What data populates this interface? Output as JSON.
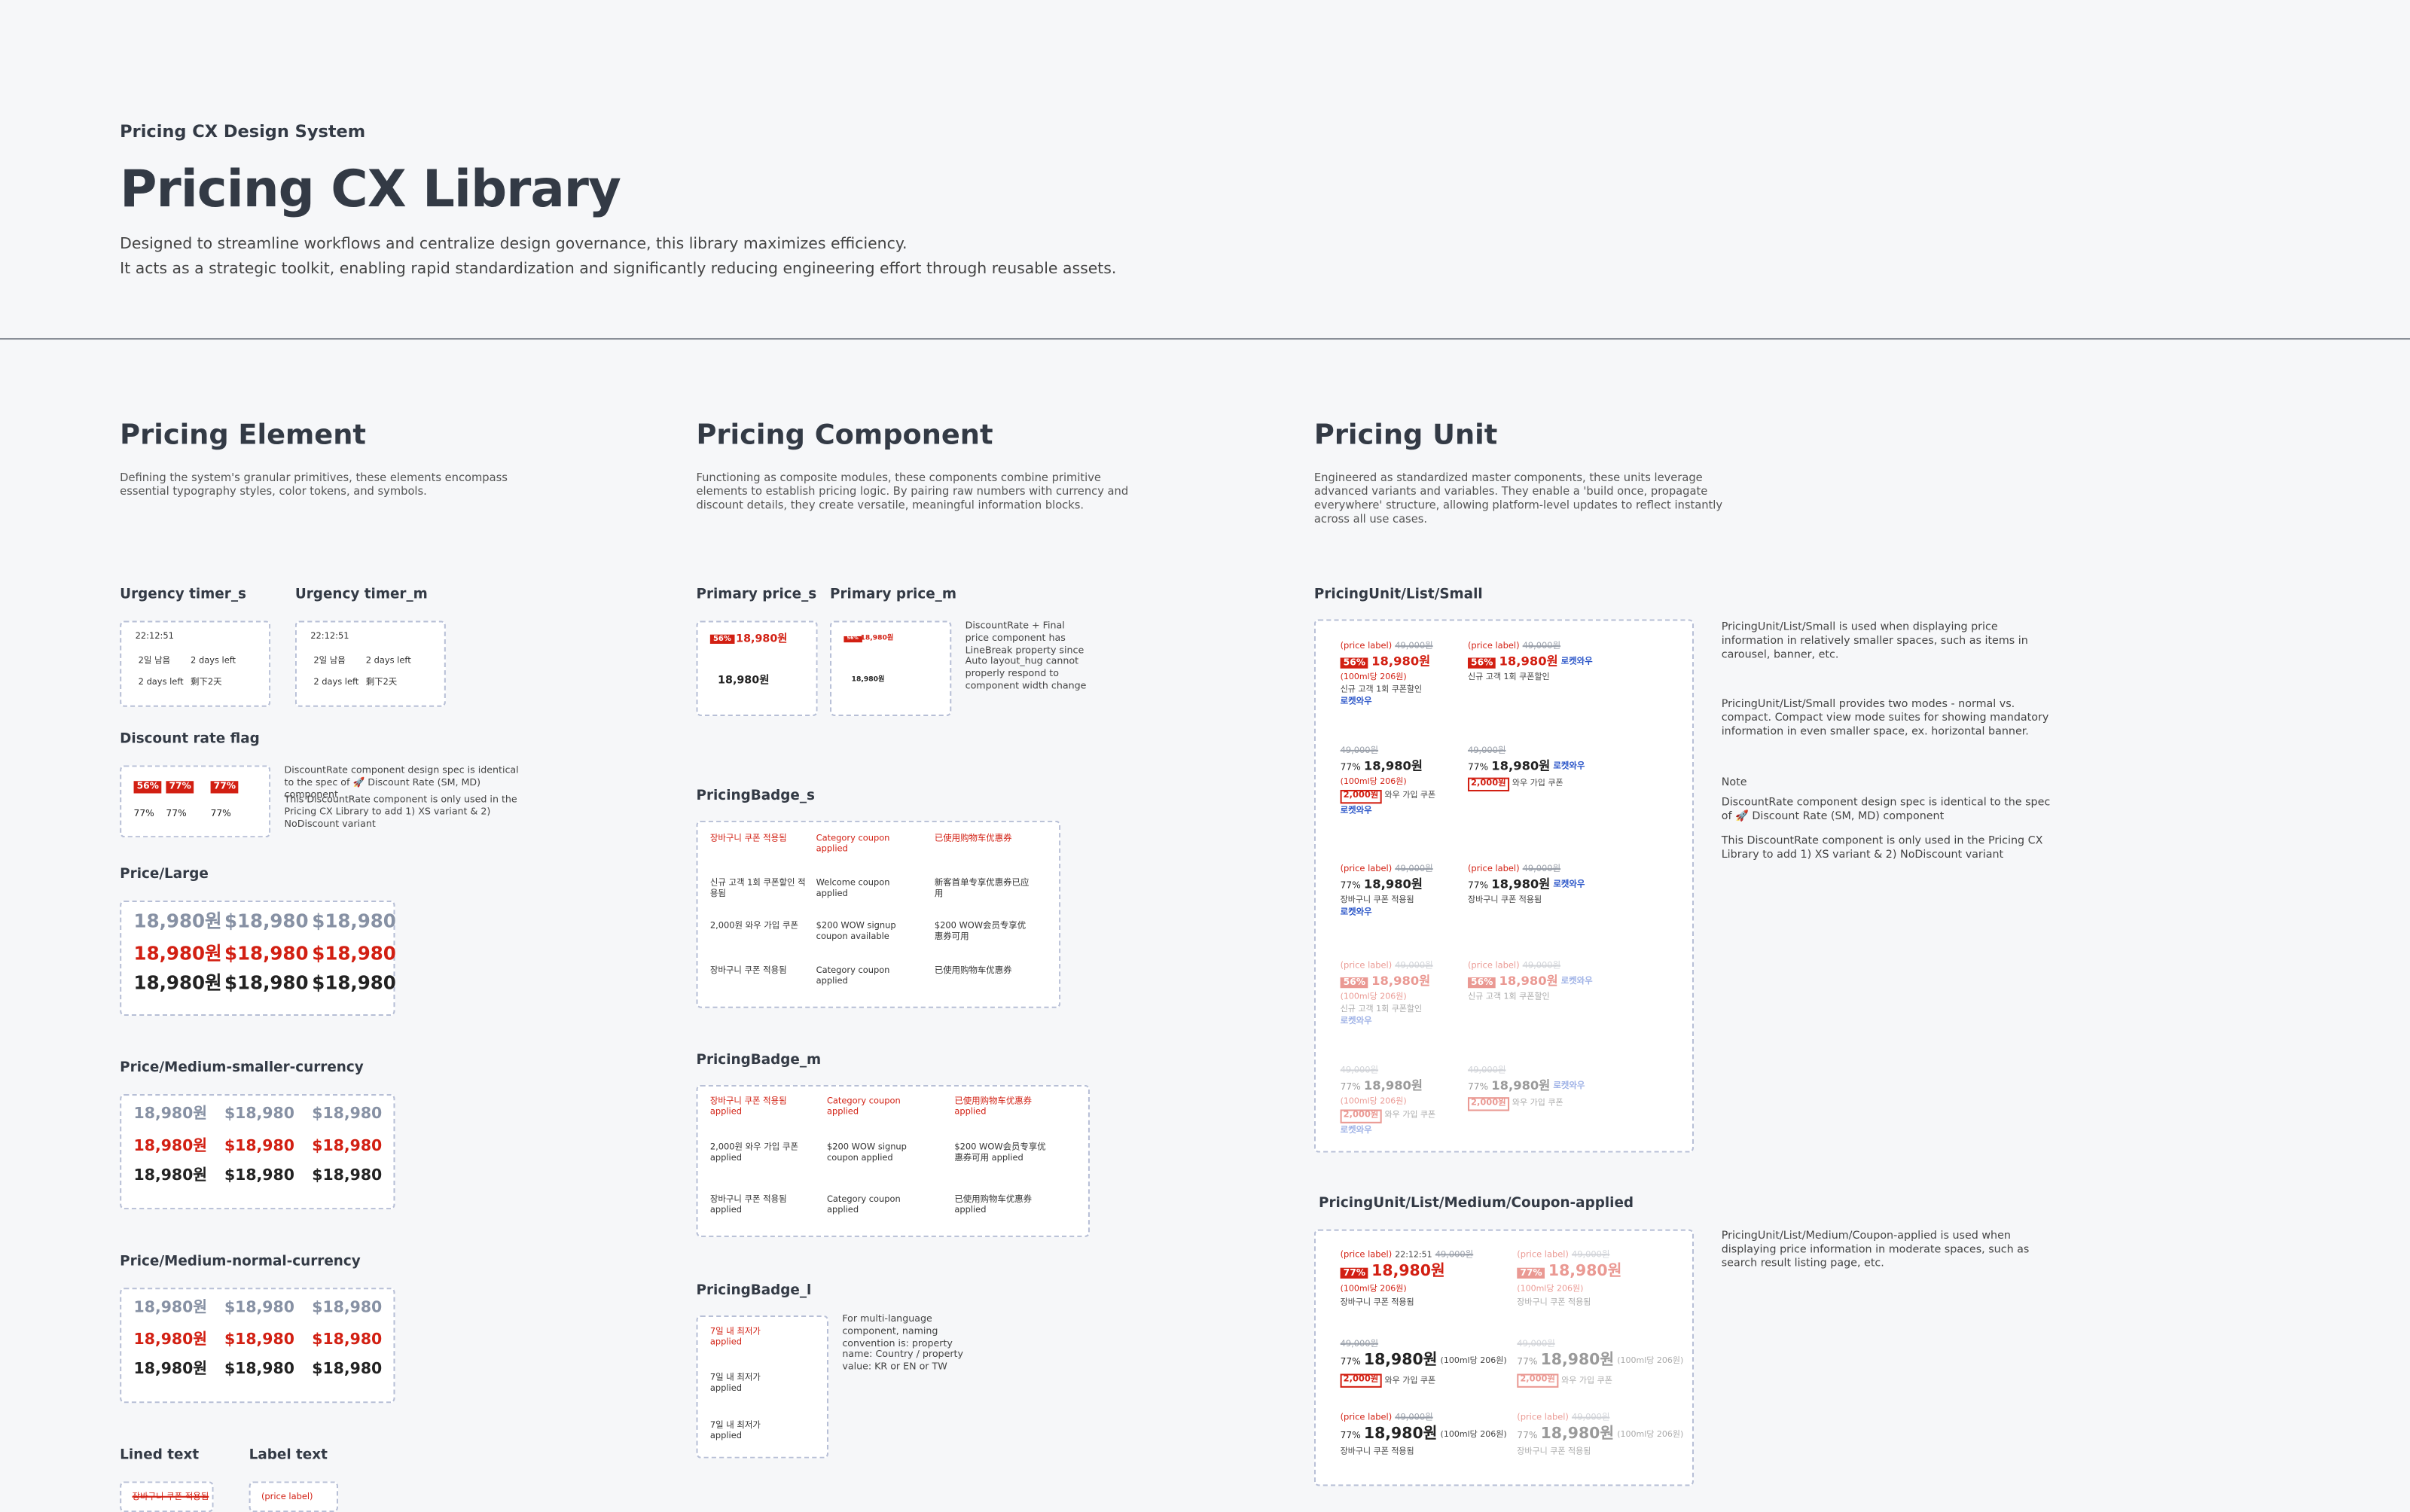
{
  "header": {
    "eyebrow": "Pricing CX Design System",
    "title": "Pricing CX Library",
    "description": [
      "Designed to streamline workflows and centralize design governance, this library maximizes efficiency.",
      "It acts as a strategic toolkit, enabling rapid standardization and significantly reducing engineering effort through reusable assets."
    ]
  },
  "sections": [
    {
      "title": "Pricing Element",
      "description": "Defining the system's granular primitives, these elements encompass essential typography styles, color tokens, and symbols."
    },
    {
      "title": "Pricing Component",
      "description": "Functioning as composite modules, these components combine primitive elements to establish pricing logic. By pairing raw numbers with currency and discount details, they create versatile, meaningful information blocks."
    },
    {
      "title": "Pricing Unit",
      "description": "Engineered as standardized master components, these units leverage advanced variants and variables. They enable a 'build once, propagate everywhere' structure, allowing platform-level updates to reflect instantly across all use cases."
    }
  ],
  "element": {
    "urgency_timer_s": {
      "title": "Urgency timer_s",
      "items": [
        "22:12:51",
        "2일 남음",
        "2 days left",
        "2 days left",
        "剩下2天"
      ]
    },
    "urgency_timer_m": {
      "title": "Urgency timer_m",
      "items": [
        "22:12:51",
        "2일 남음",
        "2 days left",
        "2 days left",
        "剩下2天"
      ]
    },
    "discount_rate_flag": {
      "title": "Discount rate flag",
      "flags": [
        "56%",
        "77%",
        "77%"
      ],
      "plain": [
        "77%",
        "77%",
        "77%"
      ],
      "notes": [
        "DiscountRate component design spec is identical to the spec of 🚀 Discount Rate (SM, MD) component",
        "This DiscountRate component is only used in the Pricing CX Library to add 1) XS variant & 2) NoDiscount variant"
      ]
    },
    "price_large": {
      "title": "Price/Large",
      "rows": [
        [
          "18,980원",
          "$18,980",
          "$18,980"
        ],
        [
          "18,980원",
          "$18,980",
          "$18,980"
        ],
        [
          "18,980원",
          "$18,980",
          "$18,980"
        ]
      ]
    },
    "price_medium_smaller_currency": {
      "title": "Price/Medium-smaller-currency",
      "rows": [
        [
          "18,980원",
          "$18,980",
          "$18,980"
        ],
        [
          "18,980원",
          "$18,980",
          "$18,980"
        ],
        [
          "18,980원",
          "$18,980",
          "$18,980"
        ]
      ]
    },
    "price_medium_normal_currency": {
      "title": "Price/Medium-normal-currency",
      "rows": [
        [
          "18,980원",
          "$18,980",
          "$18,980"
        ],
        [
          "18,980원",
          "$18,980",
          "$18,980"
        ],
        [
          "18,980원",
          "$18,980",
          "$18,980"
        ]
      ]
    },
    "lined_text": {
      "title": "Lined text",
      "sample": "장바구니 쿠폰 적용됨"
    },
    "label_text": {
      "title": "Label text",
      "sample": "(price label)"
    }
  },
  "component": {
    "primary_price_s": {
      "title": "Primary price_s",
      "flag": "56%",
      "prices": [
        "18,980원",
        "18,980원"
      ]
    },
    "primary_price_m": {
      "title": "Primary price_m",
      "flag": "56%",
      "prices": [
        "18,980원",
        "18,980원"
      ],
      "note": "DiscountRate + Final price component has LineBreak property since Auto layout_hug cannot properly respond to component width change"
    },
    "pricing_badge_s": {
      "title": "PricingBadge_s",
      "rows": [
        [
          "장바구니 쿠폰 적용됨",
          "Category coupon applied",
          "已使用购物车优惠券"
        ],
        [
          "신규 고객 1회 쿠폰할인 적용됨",
          "Welcome coupon applied",
          "新客首单专享优惠券已应用"
        ],
        [
          "2,000원 와우 가입 쿠폰",
          "$200 WOW signup coupon available",
          "$200 WOW会员专享优惠券可用"
        ],
        [
          "장바구니 쿠폰 적용됨",
          "Category coupon applied",
          "已使用购物车优惠券"
        ]
      ]
    },
    "pricing_badge_m": {
      "title": "PricingBadge_m",
      "rows": [
        [
          "장바구니 쿠폰 적용됨 applied",
          "Category coupon applied",
          "已使用购物车优惠券 applied"
        ],
        [
          "2,000원 와우 가입 쿠폰 applied",
          "$200 WOW signup coupon applied",
          "$200 WOW会员专享优惠券可用 applied"
        ],
        [
          "장바구니 쿠폰 적용됨 applied",
          "Category coupon applied",
          "已使用购物车优惠券 applied"
        ]
      ]
    },
    "pricing_badge_l": {
      "title": "PricingBadge_l",
      "items": [
        "7일 내 최저가 applied",
        "7일 내 최저가 applied",
        "7일 내 최저가 applied"
      ],
      "note": "For multi-language component, naming convention is: property name: Country / property value: KR or EN or TW"
    }
  },
  "unit": {
    "list_small": {
      "title": "PricingUnit/List/Small",
      "cells": [
        [
          [
            "(price label)",
            "49,000원"
          ],
          [
            "56%",
            "18,980원"
          ],
          [
            "(100ml당 206원)"
          ],
          [
            "신규 고객 1회 쿠폰할인"
          ],
          [
            "로켓와우"
          ]
        ],
        [
          [
            "(price label)",
            "49,000원"
          ],
          [
            "56%",
            "18,980원",
            "로켓와우"
          ],
          [
            "신규 고객 1회 쿠폰할인"
          ]
        ],
        [
          [
            "49,000원"
          ],
          [
            "77%",
            "18,980원"
          ],
          [
            "(100ml당 206원)"
          ],
          [
            "2,000원",
            "와우 가입 쿠폰"
          ],
          [
            "로켓와우"
          ]
        ],
        [
          [
            "49,000원"
          ],
          [
            "77%",
            "18,980원",
            "로켓와우"
          ],
          [
            "2,000원",
            "와우 가입 쿠폰"
          ]
        ],
        [
          [
            "(price label)",
            "49,000원"
          ],
          [
            "77%",
            "18,980원"
          ],
          [
            "장바구니 쿠폰 적용됨"
          ],
          [
            "로켓와우"
          ]
        ],
        [
          [
            "(price label)",
            "49,000원"
          ],
          [
            "77%",
            "18,980원",
            "로켓와우"
          ],
          [
            "장바구니 쿠폰 적용됨"
          ]
        ],
        [
          [
            "(price label)",
            "49,000원"
          ],
          [
            "56%",
            "18,980원"
          ],
          [
            "(100ml당 206원)"
          ],
          [
            "신규 고객 1회 쿠폰할인"
          ],
          [
            "로켓와우"
          ]
        ],
        [
          [
            "(price label)",
            "49,000원"
          ],
          [
            "56%",
            "18,980원",
            "로켓와우"
          ],
          [
            "신규 고객 1회 쿠폰할인"
          ]
        ],
        [
          [
            "49,000원"
          ],
          [
            "77%",
            "18,980원"
          ],
          [
            "(100ml당 206원)"
          ],
          [
            "2,000원",
            "와우 가입 쿠폰"
          ],
          [
            "로켓와우"
          ]
        ],
        [
          [
            "49,000원"
          ],
          [
            "77%",
            "18,980원",
            "로켓와우"
          ],
          [
            "2,000원",
            "와우 가입 쿠폰"
          ]
        ]
      ],
      "notes": [
        "PricingUnit/List/Small is used when displaying price information in relatively smaller spaces, such as items in carousel, banner, etc.",
        "PricingUnit/List/Small provides two modes - normal vs. compact. Compact view mode suites for showing mandatory information in even smaller space, ex. horizontal banner.",
        "Note",
        "DiscountRate component design spec is identical to the spec of 🚀 Discount Rate (SM, MD) component",
        "This DiscountRate component is only used in the Pricing CX Library to add 1) XS variant & 2) NoDiscount variant"
      ]
    },
    "list_medium_coupon": {
      "title": "PricingUnit/List/Medium/Coupon-applied",
      "cells": [
        [
          [
            "(price label)",
            "22:12:51",
            "49,000원"
          ],
          [
            "77%",
            "18,980원"
          ],
          [
            "(100ml당 206원)"
          ],
          [
            "장바구니 쿠폰 적용됨"
          ]
        ],
        [
          [
            "(price label)",
            "49,000원"
          ],
          [
            "77%",
            "18,980원"
          ],
          [
            "(100ml당 206원)"
          ],
          [
            "장바구니 쿠폰 적용됨"
          ]
        ],
        [
          [
            "49,000원"
          ],
          [
            "77%",
            "18,980원",
            "(100ml당 206원)"
          ],
          [
            "2,000원",
            "와우 가입 쿠폰"
          ]
        ],
        [
          [
            "49,000원"
          ],
          [
            "77%",
            "18,980원",
            "(100ml당 206원)"
          ],
          [
            "2,000원",
            "와우 가입 쿠폰"
          ]
        ],
        [
          [
            "(price label)",
            "49,000원"
          ],
          [
            "77%",
            "18,980원",
            "(100ml당 206원)"
          ],
          [
            "장바구니 쿠폰 적용됨"
          ]
        ],
        [
          [
            "(price label)",
            "49,000원"
          ],
          [
            "77%",
            "18,980원",
            "(100ml당 206원)"
          ],
          [
            "장바구니 쿠폰 적용됨"
          ]
        ]
      ],
      "note": "PricingUnit/List/Medium/Coupon-applied is used when displaying price information in moderate spaces, such as search result listing page, etc."
    }
  }
}
